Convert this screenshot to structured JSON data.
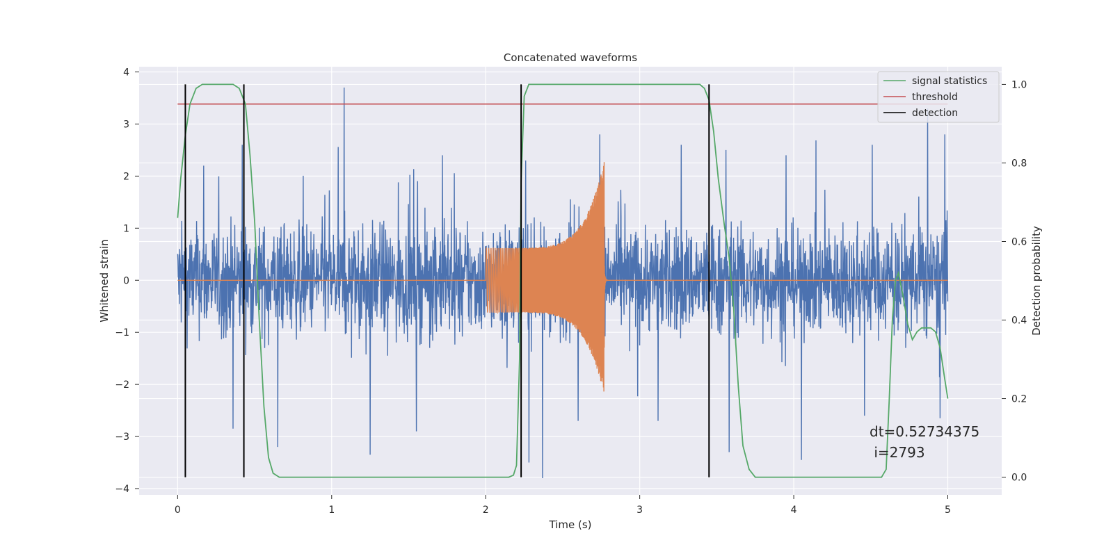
{
  "chart_data": {
    "type": "line",
    "title": "Concatenated waveforms",
    "xlabel": "Time (s)",
    "ylabel": "Whitened strain",
    "y2label": "Detection probability",
    "xlim": [
      -0.25,
      5.35
    ],
    "ylim": [
      -4.12,
      4.1
    ],
    "y2lim": [
      -0.045,
      1.045
    ],
    "xticks": [
      0,
      1,
      2,
      3,
      4,
      5
    ],
    "yticks": [
      -4,
      -3,
      -2,
      -1,
      0,
      1,
      2,
      3,
      4
    ],
    "y2ticks": [
      0.0,
      0.2,
      0.4,
      0.6,
      0.8,
      1.0
    ],
    "grid": true,
    "legend_position": "top-right",
    "annotation": {
      "line1": "dt=0.52734375",
      "line2": " i=2793",
      "x": 4.5,
      "y1": -2.95,
      "y2": -3.32
    },
    "series": [
      {
        "name": "",
        "axis": "left",
        "kind": "noise",
        "color": "#4c72b0",
        "x_range": [
          0,
          5
        ],
        "typical_range": [
          -1.3,
          1.3
        ],
        "peaks": [
          {
            "x": 1.08,
            "y": 3.7
          },
          {
            "x": 4.87,
            "y": 3.3
          },
          {
            "x": 2.74,
            "y": 2.8
          },
          {
            "x": 4.98,
            "y": 2.8
          },
          {
            "x": 0.42,
            "y": 2.6
          },
          {
            "x": 3.56,
            "y": 2.5
          },
          {
            "x": 4.51,
            "y": 2.6
          },
          {
            "x": 3.27,
            "y": 2.6
          },
          {
            "x": 1.72,
            "y": 2.4
          },
          {
            "x": 0.17,
            "y": 2.2
          },
          {
            "x": 2.26,
            "y": 2.3
          },
          {
            "x": 3.95,
            "y": 2.4
          }
        ],
        "troughs": [
          {
            "x": 2.37,
            "y": -3.8
          },
          {
            "x": 4.05,
            "y": -3.45
          },
          {
            "x": 0.65,
            "y": -3.2
          },
          {
            "x": 1.25,
            "y": -3.35
          },
          {
            "x": 3.58,
            "y": -3.3
          },
          {
            "x": 2.28,
            "y": -3.5
          },
          {
            "x": 0.36,
            "y": -2.85
          },
          {
            "x": 4.95,
            "y": -2.65
          },
          {
            "x": 2.6,
            "y": -2.7
          },
          {
            "x": 1.55,
            "y": -2.9
          },
          {
            "x": 3.12,
            "y": -2.7
          },
          {
            "x": 4.46,
            "y": -2.6
          }
        ]
      },
      {
        "name": "",
        "axis": "left",
        "kind": "chirp",
        "color": "#dd8452",
        "x_range": [
          0,
          5
        ],
        "chirp_start": 2.0,
        "chirp_end": 2.77,
        "amplitude_start": 0.62,
        "amplitude_peak_upper": 2.3,
        "amplitude_peak_lower": -2.2
      },
      {
        "name": "signal statistics",
        "axis": "right",
        "color": "#55a868",
        "points": [
          [
            0.0,
            0.66
          ],
          [
            0.02,
            0.76
          ],
          [
            0.05,
            0.87
          ],
          [
            0.08,
            0.95
          ],
          [
            0.12,
            0.99
          ],
          [
            0.16,
            1.0
          ],
          [
            0.36,
            1.0
          ],
          [
            0.4,
            0.99
          ],
          [
            0.44,
            0.95
          ],
          [
            0.47,
            0.82
          ],
          [
            0.5,
            0.65
          ],
          [
            0.53,
            0.4
          ],
          [
            0.56,
            0.18
          ],
          [
            0.59,
            0.05
          ],
          [
            0.62,
            0.01
          ],
          [
            0.66,
            0.0
          ],
          [
            2.15,
            0.0
          ],
          [
            2.18,
            0.005
          ],
          [
            2.2,
            0.03
          ],
          [
            2.22,
            0.3
          ],
          [
            2.23,
            0.75
          ],
          [
            2.25,
            0.97
          ],
          [
            2.28,
            1.0
          ],
          [
            3.39,
            1.0
          ],
          [
            3.42,
            0.99
          ],
          [
            3.45,
            0.96
          ],
          [
            3.48,
            0.88
          ],
          [
            3.51,
            0.76
          ],
          [
            3.55,
            0.64
          ],
          [
            3.58,
            0.56
          ],
          [
            3.61,
            0.43
          ],
          [
            3.64,
            0.23
          ],
          [
            3.67,
            0.08
          ],
          [
            3.71,
            0.02
          ],
          [
            3.75,
            0.0
          ],
          [
            4.57,
            0.0
          ],
          [
            4.6,
            0.02
          ],
          [
            4.62,
            0.2
          ],
          [
            4.64,
            0.4
          ],
          [
            4.66,
            0.5
          ],
          [
            4.68,
            0.52
          ],
          [
            4.71,
            0.46
          ],
          [
            4.74,
            0.39
          ],
          [
            4.77,
            0.35
          ],
          [
            4.8,
            0.37
          ],
          [
            4.83,
            0.38
          ],
          [
            4.86,
            0.38
          ],
          [
            4.89,
            0.38
          ],
          [
            4.92,
            0.37
          ],
          [
            4.95,
            0.33
          ],
          [
            4.98,
            0.25
          ],
          [
            5.0,
            0.2
          ]
        ]
      },
      {
        "name": "threshold",
        "axis": "right",
        "color": "#c44e52",
        "x": [
          0.0,
          5.0
        ],
        "value": 0.95
      },
      {
        "name": "detection",
        "axis": "right",
        "color": "#000000",
        "x": [
          0.05,
          0.43,
          2.23,
          3.45
        ],
        "y_range": [
          0.0,
          1.0
        ]
      }
    ]
  }
}
